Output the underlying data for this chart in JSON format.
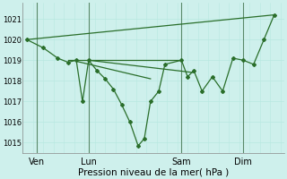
{
  "background_color": "#cef0ec",
  "grid_color_minor": "#e0f5f2",
  "grid_color_major": "#b8e8e0",
  "line_color": "#2a6e2a",
  "ylim": [
    1014.5,
    1021.8
  ],
  "xlim": [
    -0.2,
    12.5
  ],
  "ylabel_ticks": [
    1015,
    1016,
    1017,
    1018,
    1019,
    1020,
    1021
  ],
  "xlabel": "Pression niveau de la mer( hPa )",
  "day_labels": [
    "Ven",
    "Lun",
    "Sam",
    "Dim"
  ],
  "day_positions": [
    0.5,
    3.0,
    7.5,
    10.5
  ],
  "vline_positions": [
    0.5,
    3.0,
    7.5,
    10.5
  ],
  "series1": [
    [
      0.0,
      1020.0
    ],
    [
      0.8,
      1019.6
    ],
    [
      1.5,
      1019.1
    ],
    [
      2.0,
      1018.9
    ],
    [
      2.4,
      1019.0
    ],
    [
      2.7,
      1017.0
    ],
    [
      3.0,
      1019.0
    ],
    [
      3.4,
      1018.5
    ],
    [
      3.8,
      1018.1
    ],
    [
      4.2,
      1017.6
    ],
    [
      4.6,
      1016.85
    ],
    [
      5.0,
      1016.0
    ],
    [
      5.4,
      1014.85
    ],
    [
      5.7,
      1015.2
    ],
    [
      6.0,
      1017.0
    ],
    [
      6.4,
      1017.5
    ],
    [
      6.7,
      1018.8
    ],
    [
      7.5,
      1019.0
    ],
    [
      7.8,
      1018.2
    ],
    [
      8.1,
      1018.5
    ],
    [
      8.5,
      1017.5
    ],
    [
      9.0,
      1018.2
    ],
    [
      9.5,
      1017.5
    ],
    [
      10.0,
      1019.1
    ],
    [
      10.5,
      1019.0
    ],
    [
      11.0,
      1018.8
    ],
    [
      11.5,
      1020.0
    ],
    [
      12.0,
      1021.2
    ]
  ],
  "long_lines": [
    [
      [
        0.0,
        1020.0
      ],
      [
        12.0,
        1021.2
      ]
    ],
    [
      [
        2.0,
        1019.0
      ],
      [
        7.5,
        1019.0
      ]
    ],
    [
      [
        2.4,
        1018.95
      ],
      [
        6.0,
        1018.1
      ]
    ],
    [
      [
        3.0,
        1019.0
      ],
      [
        8.1,
        1018.4
      ]
    ]
  ]
}
